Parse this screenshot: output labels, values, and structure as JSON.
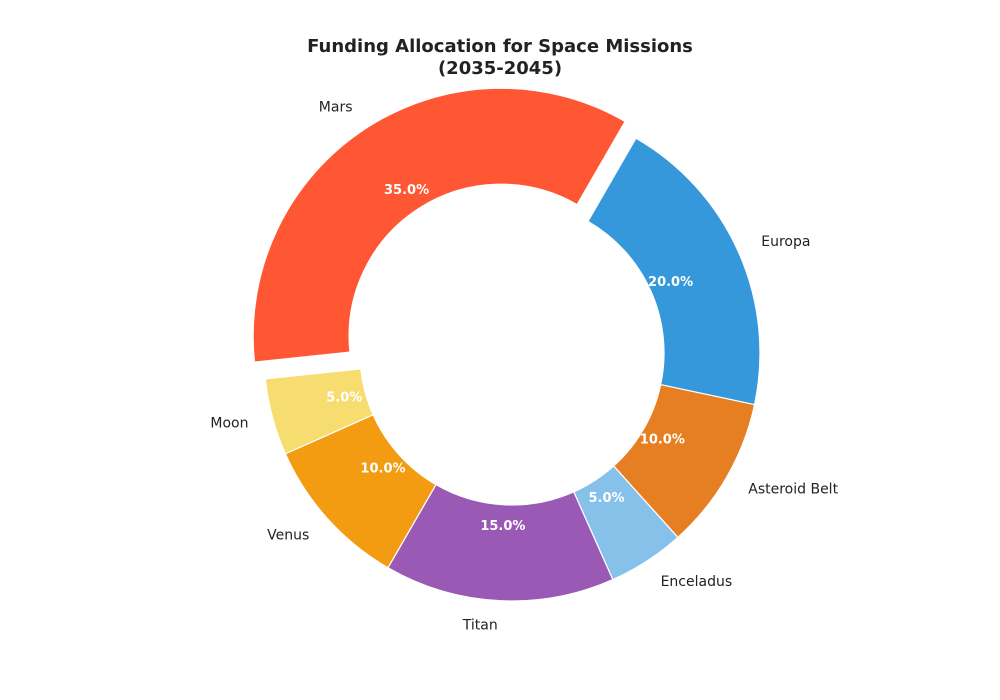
{
  "chart_data": {
    "type": "pie",
    "style": "donut",
    "title_line1": "Funding Allocation for Space Missions",
    "title_line2": "(2035-2045)",
    "slices": [
      {
        "label": "Mars",
        "value": 35.0,
        "pct_label": "35.0%",
        "color": "#FF5733",
        "exploded": true
      },
      {
        "label": "Moon",
        "value": 5.0,
        "pct_label": "5.0%",
        "color": "#F7DC6F",
        "exploded": false
      },
      {
        "label": "Venus",
        "value": 10.0,
        "pct_label": "10.0%",
        "color": "#F39C12",
        "exploded": false
      },
      {
        "label": "Titan",
        "value": 15.0,
        "pct_label": "15.0%",
        "color": "#9B59B6",
        "exploded": false
      },
      {
        "label": "Enceladus",
        "value": 5.0,
        "pct_label": "5.0%",
        "color": "#85C1E9",
        "exploded": false
      },
      {
        "label": "Asteroid Belt",
        "value": 10.0,
        "pct_label": "10.0%",
        "color": "#E67E22",
        "exploded": false
      },
      {
        "label": "Europa",
        "value": 20.0,
        "pct_label": "20.0%",
        "color": "#3498DB",
        "exploded": false
      }
    ]
  }
}
